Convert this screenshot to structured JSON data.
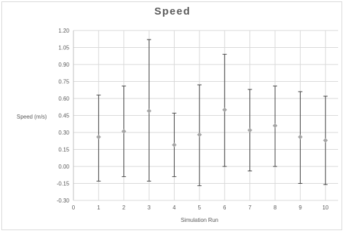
{
  "chart_data": {
    "type": "scatter",
    "title": "Speed",
    "xlabel": "Simulation Run",
    "ylabel": "Speed (m/s)",
    "xlim": [
      0,
      10.5
    ],
    "ylim": [
      -0.3,
      1.2
    ],
    "x_ticks": [
      "0",
      "1",
      "2",
      "3",
      "4",
      "5",
      "6",
      "7",
      "8",
      "9",
      "10"
    ],
    "y_ticks": [
      "1.20",
      "1.05",
      "0.90",
      "0.75",
      "0.60",
      "0.45",
      "0.30",
      "0.15",
      "0.00",
      "-0.15",
      "-0.30"
    ],
    "grid": true,
    "legend": "none",
    "marker_color": "#a6a6a6",
    "errorbar_color": "#404040",
    "series": [
      {
        "x": [
          1,
          2,
          3,
          4,
          5,
          6,
          7,
          8,
          9,
          10
        ],
        "y": [
          0.26,
          0.31,
          0.49,
          0.19,
          0.28,
          0.5,
          0.32,
          0.36,
          0.26,
          0.23
        ],
        "error_upper": [
          0.63,
          0.71,
          1.12,
          0.47,
          0.72,
          0.99,
          0.68,
          0.71,
          0.66,
          0.62
        ],
        "error_lower": [
          -0.13,
          -0.09,
          -0.13,
          -0.09,
          -0.17,
          0.0,
          -0.04,
          0.0,
          -0.15,
          -0.16
        ]
      }
    ]
  }
}
